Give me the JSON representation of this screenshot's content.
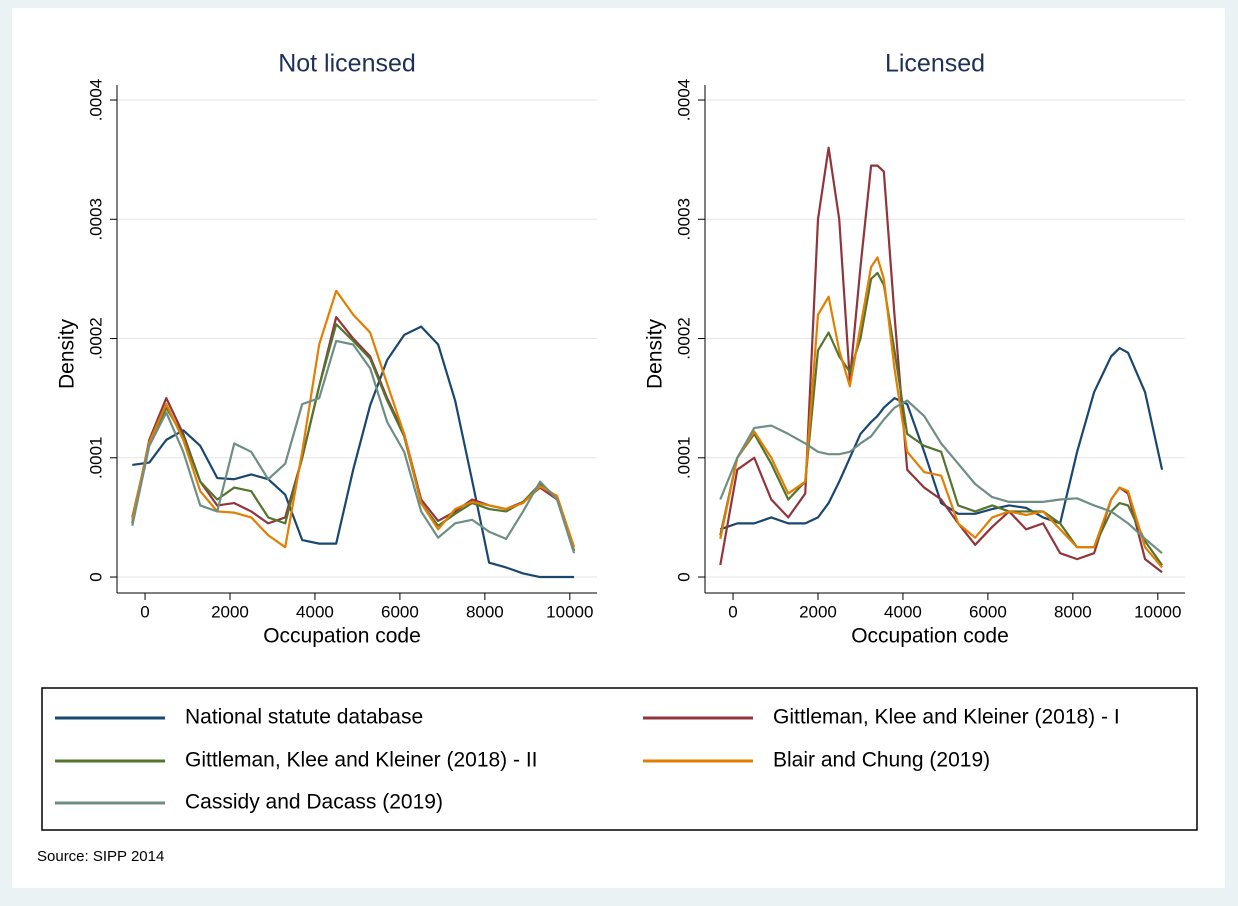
{
  "chart_data": [
    {
      "type": "line",
      "title": "Not licensed",
      "xlabel": "Occupation code",
      "ylabel": "Density",
      "xlim": [
        -660,
        10640
      ],
      "ylim": [
        -1.34e-05,
        0.0004126
      ],
      "xticks": [
        0,
        2000,
        4000,
        6000,
        8000,
        10000
      ],
      "yticks": [
        0,
        {
          "value": 0.0001,
          "label": ".0001"
        },
        {
          "value": 0.0002,
          "label": ".0002"
        },
        {
          "value": 0.0003,
          "label": ".0003"
        },
        {
          "value": 0.0004,
          "label": ".0004"
        }
      ],
      "grid": true,
      "x": [
        -300,
        100,
        500,
        900,
        1300,
        1700,
        2100,
        2500,
        2900,
        3300,
        3700,
        4100,
        4500,
        4900,
        5300,
        5700,
        6100,
        6500,
        6900,
        7300,
        7700,
        8100,
        8500,
        8900,
        9300,
        9700,
        10100
      ],
      "series": [
        {
          "name": "National statute database",
          "color": "#1a476f",
          "values": [
            9.4e-05,
            9.6e-05,
            0.000115,
            0.000123,
            0.00011,
            8.3e-05,
            8.2e-05,
            8.6e-05,
            8.2e-05,
            6.9e-05,
            3.1e-05,
            2.8e-05,
            2.8e-05,
            9e-05,
            0.000144,
            0.000182,
            0.000203,
            0.00021,
            0.000195,
            0.000148,
            8.1e-05,
            1.2e-05,
            8e-06,
            3e-06,
            0,
            0,
            0
          ]
        },
        {
          "name": "Gittleman, Klee and Kleiner (2018) - I",
          "color": "#90353b",
          "values": [
            4.5e-05,
            0.000115,
            0.00015,
            0.00012,
            8e-05,
            6e-05,
            6.2e-05,
            5.5e-05,
            4.5e-05,
            5e-05,
            0.0001,
            0.00016,
            0.000218,
            0.0002,
            0.000185,
            0.00015,
            0.00012,
            6.5e-05,
            4.7e-05,
            5.5e-05,
            6.5e-05,
            6e-05,
            5.7e-05,
            6.3e-05,
            7.5e-05,
            6.5e-05,
            2.5e-05
          ]
        },
        {
          "name": "Gittleman, Klee and Kleiner (2018) - II",
          "color": "#55752f",
          "values": [
            5e-05,
            0.000112,
            0.000142,
            0.000118,
            8e-05,
            6.5e-05,
            7.5e-05,
            7.2e-05,
            5e-05,
            4.5e-05,
            0.0001,
            0.00016,
            0.000212,
            0.000198,
            0.000183,
            0.000148,
            0.000118,
            6.2e-05,
            4.3e-05,
            5.3e-05,
            6.2e-05,
            5.7e-05,
            5.5e-05,
            6.3e-05,
            7.8e-05,
            6.7e-05,
            2.2e-05
          ]
        },
        {
          "name": "Blair and Chung (2019)",
          "color": "#e37e00",
          "values": [
            4.8e-05,
            0.000113,
            0.000145,
            0.000115,
            7.2e-05,
            5.5e-05,
            5.4e-05,
            5e-05,
            3.5e-05,
            2.5e-05,
            0.000105,
            0.000195,
            0.00024,
            0.00022,
            0.000205,
            0.000162,
            0.00012,
            6.2e-05,
            4e-05,
            5.7e-05,
            6.3e-05,
            6e-05,
            5.7e-05,
            6.2e-05,
            7.6e-05,
            6.8e-05,
            2.5e-05
          ]
        },
        {
          "name": "Cassidy and Dacass (2019)",
          "color": "#6e8e84",
          "values": [
            4.3e-05,
            0.00011,
            0.000138,
            0.000105,
            6e-05,
            5.5e-05,
            0.000112,
            0.000105,
            8.2e-05,
            9.5e-05,
            0.000145,
            0.00015,
            0.000198,
            0.000195,
            0.000175,
            0.00013,
            0.000105,
            5.5e-05,
            3.3e-05,
            4.5e-05,
            4.8e-05,
            3.8e-05,
            3.2e-05,
            5.5e-05,
            8e-05,
            6.5e-05,
            2e-05
          ]
        }
      ]
    },
    {
      "type": "line",
      "title": "Licensed",
      "xlabel": "Occupation code",
      "ylabel": "Density",
      "xlim": [
        -660,
        10640
      ],
      "ylim": [
        -1.34e-05,
        0.0004126
      ],
      "xticks": [
        0,
        2000,
        4000,
        6000,
        8000,
        10000
      ],
      "yticks": [
        0,
        {
          "value": 0.0001,
          "label": ".0001"
        },
        {
          "value": 0.0002,
          "label": ".0002"
        },
        {
          "value": 0.0003,
          "label": ".0003"
        },
        {
          "value": 0.0004,
          "label": ".0004"
        }
      ],
      "grid": true,
      "x": [
        -300,
        100,
        500,
        900,
        1300,
        1700,
        2000,
        2250,
        2500,
        2750,
        3000,
        3250,
        3400,
        3550,
        3800,
        4100,
        4500,
        4900,
        5300,
        5700,
        6100,
        6500,
        6900,
        7300,
        7700,
        8100,
        8500,
        8900,
        9100,
        9300,
        9700,
        10100
      ],
      "series": [
        {
          "color": "#1a476f",
          "values": [
            4e-05,
            4.5e-05,
            4.5e-05,
            5e-05,
            4.5e-05,
            4.5e-05,
            5e-05,
            6.2e-05,
            8e-05,
            0.0001,
            0.00012,
            0.00013,
            0.000135,
            0.000142,
            0.00015,
            0.000145,
            0.000105,
            6.2e-05,
            5.3e-05,
            5.3e-05,
            5.7e-05,
            6e-05,
            5.8e-05,
            5e-05,
            4.5e-05,
            0.000105,
            0.000155,
            0.000185,
            0.000192,
            0.000188,
            0.000155,
            9e-05
          ]
        },
        {
          "color": "#90353b",
          "values": [
            1e-05,
            9e-05,
            0.0001,
            6.5e-05,
            5e-05,
            7e-05,
            0.0003,
            0.00036,
            0.0003,
            0.000165,
            0.00026,
            0.000345,
            0.000345,
            0.00034,
            0.00022,
            9e-05,
            7.5e-05,
            6.5e-05,
            4.5e-05,
            2.7e-05,
            4.2e-05,
            5.5e-05,
            4e-05,
            4.5e-05,
            2e-05,
            1.5e-05,
            2e-05,
            6.5e-05,
            7.5e-05,
            7e-05,
            1.5e-05,
            4e-06
          ]
        },
        {
          "color": "#55752f",
          "values": [
            3.5e-05,
            0.0001,
            0.00012,
            9.5e-05,
            6.5e-05,
            8e-05,
            0.00019,
            0.000205,
            0.000185,
            0.000172,
            0.0002,
            0.00025,
            0.000255,
            0.000245,
            0.00019,
            0.00012,
            0.00011,
            0.000105,
            6e-05,
            5.5e-05,
            6e-05,
            5.5e-05,
            5.5e-05,
            5.5e-05,
            4.5e-05,
            2.5e-05,
            2.5e-05,
            5.5e-05,
            6.2e-05,
            6e-05,
            3e-05,
            1e-05
          ]
        },
        {
          "color": "#e37e00",
          "values": [
            3.2e-05,
            0.0001,
            0.000122,
            0.0001,
            7e-05,
            8e-05,
            0.00022,
            0.000235,
            0.00019,
            0.00016,
            0.00021,
            0.00026,
            0.000268,
            0.00025,
            0.000175,
            0.000105,
            8.8e-05,
            8.5e-05,
            4.5e-05,
            3.3e-05,
            5e-05,
            5.5e-05,
            5.2e-05,
            5.5e-05,
            4e-05,
            2.5e-05,
            2.5e-05,
            6.5e-05,
            7.5e-05,
            7.2e-05,
            2.5e-05,
            8e-06
          ]
        },
        {
          "color": "#6e8e84",
          "values": [
            6.5e-05,
            0.0001,
            0.000125,
            0.000127,
            0.00012,
            0.000112,
            0.000105,
            0.000103,
            0.000103,
            0.000105,
            0.000112,
            0.000118,
            0.000125,
            0.000132,
            0.000142,
            0.000148,
            0.000135,
            0.000112,
            9.5e-05,
            7.8e-05,
            6.7e-05,
            6.3e-05,
            6.3e-05,
            6.3e-05,
            6.5e-05,
            6.6e-05,
            6e-05,
            5.5e-05,
            5e-05,
            4.5e-05,
            3.2e-05,
            2e-05
          ]
        }
      ]
    }
  ],
  "note": "Source: SIPP 2014"
}
